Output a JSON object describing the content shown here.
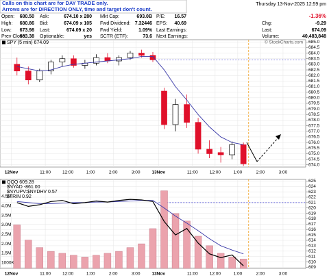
{
  "notice": [
    "Calls on this chart are for DAY TRADE only.",
    "Arrows are for DIRECTION ONLY, time and target don't count."
  ],
  "quote": {
    "timestamp": "Thursday 13-Nov-2025 12:59 pm",
    "rows": [
      [
        [
          "Open:",
          "680.50"
        ],
        [
          "Ask:",
          "674.10 x 280"
        ],
        [
          "Mkt Cap:",
          "693.0B"
        ],
        [
          "P/E:",
          "16.57"
        ]
      ],
      [
        [
          "High:",
          "680.86"
        ],
        [
          "Bid:",
          "674.09 x 105"
        ],
        [
          "Fwd Dividend:",
          "7.32446"
        ],
        [
          "EPS:",
          "40.69"
        ]
      ],
      [
        [
          "Low:",
          "673.98"
        ],
        [
          "Last:",
          "674.09 x 20"
        ],
        [
          "Fwd Yield:",
          "1.09%"
        ],
        [
          "Last Earnings:"
        ]
      ],
      [
        [
          "Prev Close:",
          "683.38"
        ],
        [
          "Optionable:",
          "yes"
        ],
        [
          "SCTR (ETF):",
          "73.6"
        ],
        [
          "Next Earnings:"
        ]
      ]
    ],
    "right": [
      [
        "-1.36%"
      ],
      [
        "Chg:",
        "-9.29"
      ],
      [
        "Last:",
        "674.09"
      ],
      [
        "Volume:",
        "40,483,848"
      ]
    ]
  },
  "chart_data": [
    {
      "type": "candlestick",
      "label": "SPY (5 min) 674.09",
      "credit": "© StockCharts.com",
      "x": [
        0.25,
        0.75,
        1.25,
        1.75,
        2.25,
        2.75,
        3.25,
        3.75,
        4.25,
        4.75,
        5.25,
        5.75,
        6.25,
        6.75,
        7.25,
        7.75,
        8.25,
        8.75,
        9.25,
        9.75,
        10.25
      ],
      "open": [
        683.0,
        682.4,
        681.6,
        682.4,
        683.2,
        683.5,
        682.9,
        683.1,
        683.6,
        683.3,
        683.6,
        684.0,
        683.8,
        680.6,
        677.6,
        679.4,
        677.8,
        675.4,
        675.1,
        674.9,
        675.8
      ],
      "high": [
        683.6,
        682.8,
        682.6,
        683.4,
        683.8,
        683.8,
        683.4,
        683.9,
        684.0,
        683.8,
        684.2,
        684.3,
        684.1,
        680.9,
        679.9,
        680.3,
        678.2,
        676.2,
        675.6,
        676.1,
        676.0
      ],
      "low": [
        682.0,
        681.2,
        681.4,
        682.1,
        682.8,
        682.7,
        682.6,
        682.9,
        683.1,
        682.9,
        683.4,
        683.6,
        683.2,
        677.2,
        677.0,
        677.3,
        675.0,
        674.6,
        674.2,
        674.5,
        673.9
      ],
      "close": [
        682.4,
        681.6,
        682.4,
        683.2,
        683.5,
        682.9,
        683.1,
        683.6,
        683.3,
        683.6,
        684.0,
        683.8,
        683.4,
        677.6,
        679.4,
        677.8,
        675.4,
        675.0,
        674.9,
        675.8,
        674.09
      ],
      "up_color": "#000000",
      "down_color": "#e0102a",
      "overlays": [
        {
          "color": "#3a3aa8",
          "values": [
            682.8,
            682.6,
            682.4,
            682.5,
            682.8,
            683.0,
            683.1,
            683.2,
            683.3,
            683.4,
            683.5,
            683.7,
            683.7,
            682.5,
            681.0,
            679.8,
            678.5,
            677.4,
            676.5,
            676.0,
            675.8
          ]
        }
      ],
      "reference_y": 683.38,
      "marker_x": 10.48,
      "xlim": [
        -0.5,
        13.0
      ],
      "xticks": [
        {
          "value": 0,
          "label": "12Nov"
        },
        {
          "value": 1.5,
          "label": "11:00"
        },
        {
          "value": 2.5,
          "label": "12:00"
        },
        {
          "value": 3.5,
          "label": "1:00"
        },
        {
          "value": 4.5,
          "label": "2:00"
        },
        {
          "value": 5.5,
          "label": "3:00"
        },
        {
          "value": 6.5,
          "label": "13Nov"
        },
        {
          "value": 8,
          "label": "11:00"
        },
        {
          "value": 9,
          "label": "12:00"
        },
        {
          "value": 10,
          "label": "1:00"
        },
        {
          "value": 11,
          "label": "2:00"
        },
        {
          "value": 12,
          "label": "3:00"
        }
      ],
      "ylim": [
        673.8,
        685.2
      ],
      "yticks": [
        {
          "value": 674,
          "label": "674.0"
        },
        674.5,
        {
          "value": 675,
          "label": "675.0"
        },
        675.5,
        {
          "value": 676,
          "label": "676.0"
        },
        676.5,
        {
          "value": 677,
          "label": "677.0"
        },
        677.5,
        {
          "value": 678,
          "label": "678.0"
        },
        678.5,
        {
          "value": 679,
          "label": "679.0"
        },
        679.5,
        {
          "value": 680,
          "label": "680.0"
        },
        680.5,
        {
          "value": 681,
          "label": "681.0"
        },
        681.5,
        {
          "value": 682,
          "label": "682.0"
        },
        682.5,
        {
          "value": 683,
          "label": "683.0"
        },
        683.5,
        {
          "value": 684,
          "label": "684.0"
        },
        684.5,
        {
          "value": 685,
          "label": "685.0"
        }
      ],
      "grid": true
    },
    {
      "type": "line",
      "labels": [
        "$NYAD -861.00",
        "$NYUPV:$NYDHV 0.57",
        "$TRIN 0.92"
      ],
      "x": [
        0.25,
        0.75,
        1.25,
        1.75,
        2.25,
        2.75,
        3.25,
        3.75,
        4.25,
        4.75,
        5.25,
        5.75,
        6.25,
        6.75,
        7.25,
        7.75,
        8.25,
        8.75,
        9.25,
        9.75,
        10.25
      ],
      "series": [
        {
          "name": "QQQ 609.28",
          "color": "#000000",
          "values": [
            621.0,
            620.3,
            620.6,
            621.2,
            621.4,
            620.8,
            621.0,
            621.3,
            621.1,
            621.4,
            621.6,
            621.5,
            621.2,
            617.5,
            615.0,
            616.2,
            613.5,
            611.5,
            610.8,
            611.3,
            609.28
          ]
        }
      ],
      "overlays": [
        {
          "color": "#3a3aa8",
          "values": [
            621.2,
            621.0,
            620.8,
            620.8,
            620.9,
            621.0,
            621.0,
            621.1,
            621.1,
            621.2,
            621.3,
            621.4,
            621.4,
            620.0,
            618.5,
            617.2,
            615.8,
            614.3,
            613.0,
            612.2,
            611.5
          ]
        }
      ],
      "volume": {
        "color": "#eba3ad",
        "axis": "y2",
        "values": [
          3000000,
          2200000,
          1800000,
          1600000,
          1500000,
          1400000,
          1300000,
          1400000,
          1500000,
          1600000,
          1800000,
          2000000,
          2800000,
          4800000,
          3600000,
          3200000,
          2400000,
          1900000,
          1500000,
          1300000,
          1200000
        ]
      },
      "reference_y": 621,
      "marker_x": 10.48,
      "xlim": [
        -0.5,
        13.0
      ],
      "xticks": [
        {
          "value": 0,
          "label": "12Nov"
        },
        {
          "value": 1.5,
          "label": "11:00"
        },
        {
          "value": 2.5,
          "label": "12:00"
        },
        {
          "value": 3.5,
          "label": "1:00"
        },
        {
          "value": 4.5,
          "label": "2:00"
        },
        {
          "value": 5.5,
          "label": "3:00"
        },
        {
          "value": 6.5,
          "label": "13Nov"
        },
        {
          "value": 8,
          "label": "11:00"
        },
        {
          "value": 9,
          "label": "12:00"
        },
        {
          "value": 10,
          "label": "1:00"
        },
        {
          "value": 11,
          "label": "2:00"
        },
        {
          "value": 12,
          "label": "3:00"
        }
      ],
      "ylim": [
        608.8,
        625.3
      ],
      "yticks": [
        609,
        610,
        611,
        612,
        613,
        614,
        615,
        616,
        617,
        618,
        619,
        620,
        621,
        622,
        623,
        624,
        625
      ],
      "y2lim": [
        700000,
        5400000
      ],
      "y2ticks": [
        {
          "value": 1000000,
          "label": "1000K"
        },
        {
          "value": 1500000,
          "label": "1.5M"
        },
        {
          "value": 2000000,
          "label": "2.0M"
        },
        {
          "value": 2500000,
          "label": "2.5M"
        },
        {
          "value": 3000000,
          "label": "3.0M"
        },
        {
          "value": 3500000,
          "label": "3.5M"
        },
        {
          "value": 4000000,
          "label": "4.0M"
        },
        {
          "value": 4500000,
          "label": "4.5M"
        }
      ],
      "grid": true
    }
  ]
}
